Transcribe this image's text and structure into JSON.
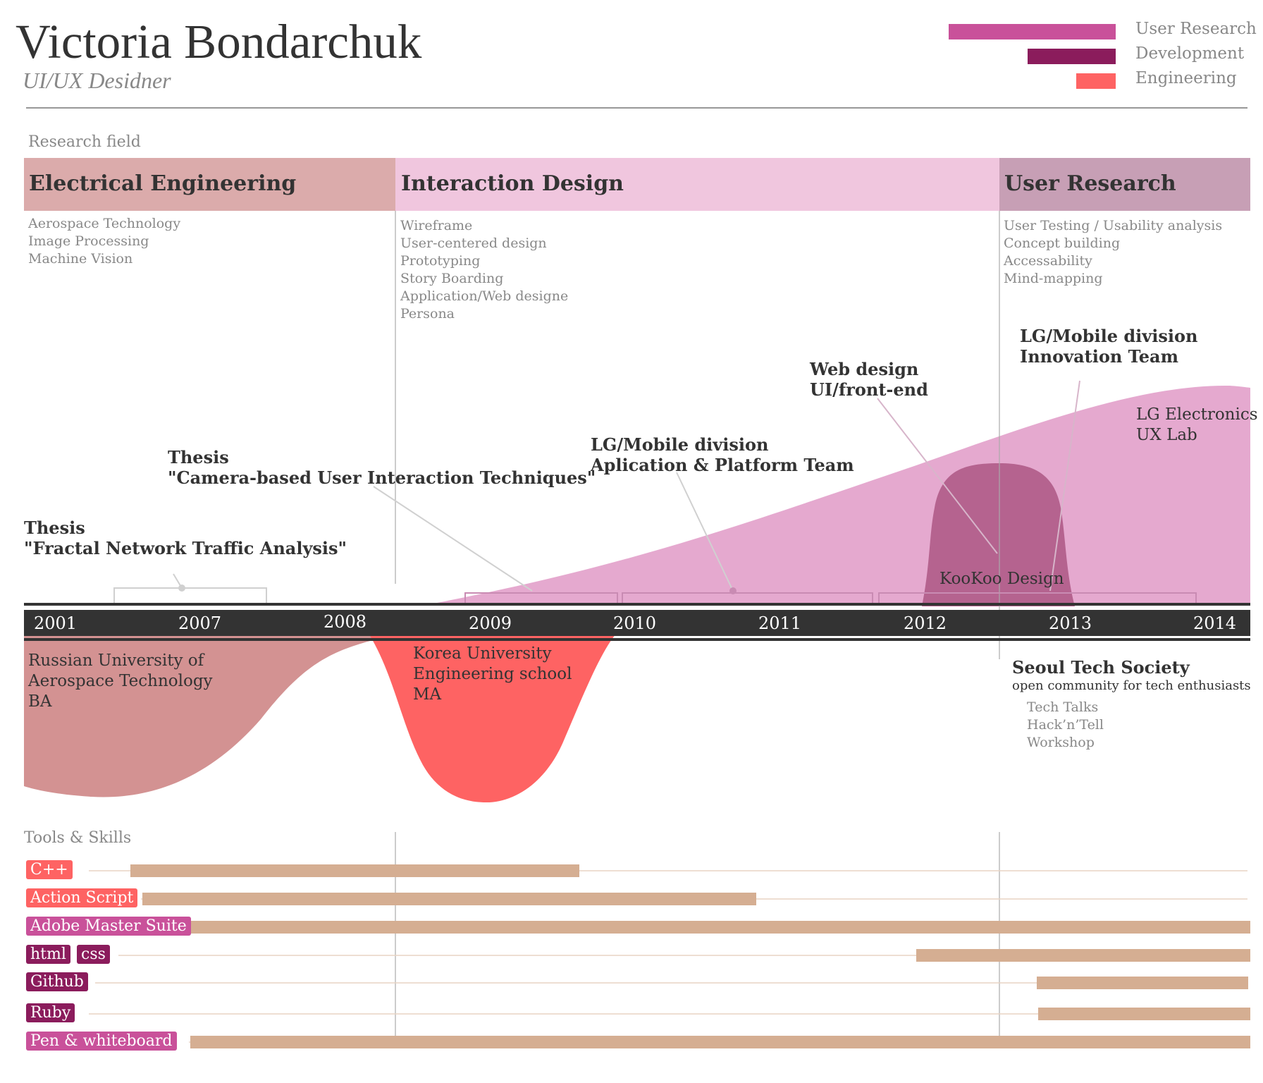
{
  "header": {
    "name": "Victoria Bondarchuk",
    "role": "UI/UX Desidner"
  },
  "legend": [
    {
      "label": "User Research",
      "color": "#c9519a"
    },
    {
      "label": "Development",
      "color": "#8b1c5c"
    },
    {
      "label": "Engineering",
      "color": "#fe6363"
    }
  ],
  "research": {
    "section_label": "Research field",
    "fields": [
      {
        "title": "Electrical Engineering",
        "color": "#dbabab",
        "topics": [
          "Aerospace Technology",
          "Image Processing",
          "Machine Vision"
        ]
      },
      {
        "title": "Interaction Design",
        "color": "#f0c6de",
        "topics": [
          "Wireframe",
          "User-centered design",
          "Prototyping",
          "Story Boarding",
          "Application/Web designe",
          "Persona"
        ]
      },
      {
        "title": "User Research",
        "color": "#c79fb5",
        "topics": [
          "User Testing / Usability analysis",
          "Concept building",
          "Accessability",
          "Mind-mapping"
        ]
      }
    ]
  },
  "timeline": {
    "years": [
      "2001",
      "2007",
      "2008",
      "2009",
      "2010",
      "2011",
      "2012",
      "2013",
      "2014"
    ],
    "events": [
      {
        "lines": [
          "Thesis",
          "\"Fractal Network Traffic Analysis\""
        ]
      },
      {
        "lines": [
          "Thesis",
          "\"Camera-based User Interaction Techniques\""
        ]
      },
      {
        "lines": [
          "LG/Mobile division",
          "Aplication & Platform Team"
        ]
      },
      {
        "lines": [
          "Web design",
          "UI/front-end"
        ]
      },
      {
        "lines": [
          "LG/Mobile division",
          "Innovation Team"
        ]
      }
    ],
    "work": [
      {
        "lines": [
          "LG Electronics",
          "UX Lab"
        ]
      },
      {
        "lines": [
          "KooKoo Design"
        ]
      }
    ],
    "education": [
      {
        "lines": [
          "Russian University of",
          "Aerospace Technology",
          "BA"
        ]
      },
      {
        "lines": [
          "Korea University",
          "Engineering school",
          "MA"
        ]
      }
    ],
    "community": {
      "title": "Seoul Tech Society",
      "subtitle": "open community for tech enthusiasts",
      "items": [
        "Tech Talks",
        "Hack’n’Tell",
        "Workshop"
      ]
    },
    "colors": {
      "lg_area": "#e5a9cf",
      "kookoo": "#b5638f",
      "russian": "#d39292",
      "korea": "#fe6363",
      "axis": "#333333"
    }
  },
  "skills": {
    "section_label": "Tools & Skills",
    "bar_color": "#d5ae92",
    "rows": [
      {
        "tags": [
          {
            "label": "C++",
            "color": "#fe6363"
          }
        ]
      },
      {
        "tags": [
          {
            "label": "Action Script",
            "color": "#fe6363"
          }
        ]
      },
      {
        "tags": [
          {
            "label": "Adobe Master Suite",
            "color": "#c9519a"
          }
        ]
      },
      {
        "tags": [
          {
            "label": "html",
            "color": "#8b1c5c"
          },
          {
            "label": "css",
            "color": "#8b1c5c"
          }
        ]
      },
      {
        "tags": [
          {
            "label": "Github",
            "color": "#8b1c5c"
          }
        ]
      },
      {
        "tags": [
          {
            "label": "Ruby",
            "color": "#8b1c5c"
          }
        ]
      },
      {
        "tags": [
          {
            "label": "Pen & whiteboard",
            "color": "#c9519a"
          }
        ]
      }
    ]
  }
}
